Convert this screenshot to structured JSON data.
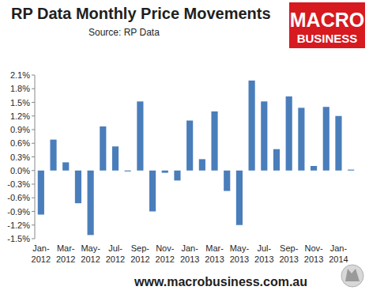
{
  "chart_data": {
    "type": "bar",
    "title": "RP Data Monthly Price Movements",
    "subtitle": "Source: RP Data",
    "logo": [
      "MACRO",
      "BUSINESS"
    ],
    "footer": "www.macrobusiness.com.au",
    "categories": [
      "Jan-2012",
      null,
      "Mar-2012",
      null,
      "May-2012",
      null,
      "Jul-2012",
      null,
      "Sep-2012",
      null,
      "Nov-2012",
      null,
      "Jan-2013",
      null,
      "Mar-2013",
      null,
      "May-2013",
      null,
      "Jul-2013",
      null,
      "Sep-2013",
      null,
      "Nov-2013",
      null,
      "Jan-2014",
      null
    ],
    "values": [
      -0.97,
      0.68,
      0.18,
      -0.72,
      -1.42,
      0.97,
      0.53,
      -0.02,
      1.52,
      -0.9,
      -0.05,
      -0.22,
      1.1,
      0.25,
      1.3,
      -0.45,
      -1.2,
      1.98,
      1.52,
      0.47,
      1.63,
      1.38,
      0.1,
      1.4,
      1.2,
      0.02
    ],
    "color": "#4a7ebb",
    "ylim": [
      -1.5,
      2.1
    ],
    "yticks": [
      {
        "value": -1.5,
        "label": "-1.5%"
      },
      {
        "value": -1.2,
        "label": "-1.2%"
      },
      {
        "value": -0.9,
        "label": "-0.9%"
      },
      {
        "value": -0.6,
        "label": "-0.6%"
      },
      {
        "value": -0.3,
        "label": "-0.3%"
      },
      {
        "value": 0,
        "label": "0.0%"
      },
      {
        "value": 0.3,
        "label": "0.3%"
      },
      {
        "value": 0.6,
        "label": "0.6%"
      },
      {
        "value": 0.9,
        "label": "0.9%"
      },
      {
        "value": 1.2,
        "label": "1.2%"
      },
      {
        "value": 1.5,
        "label": "1.5%"
      },
      {
        "value": 1.8,
        "label": "1.8%"
      },
      {
        "value": 2.1,
        "label": "2.1%"
      }
    ],
    "grid": false
  }
}
